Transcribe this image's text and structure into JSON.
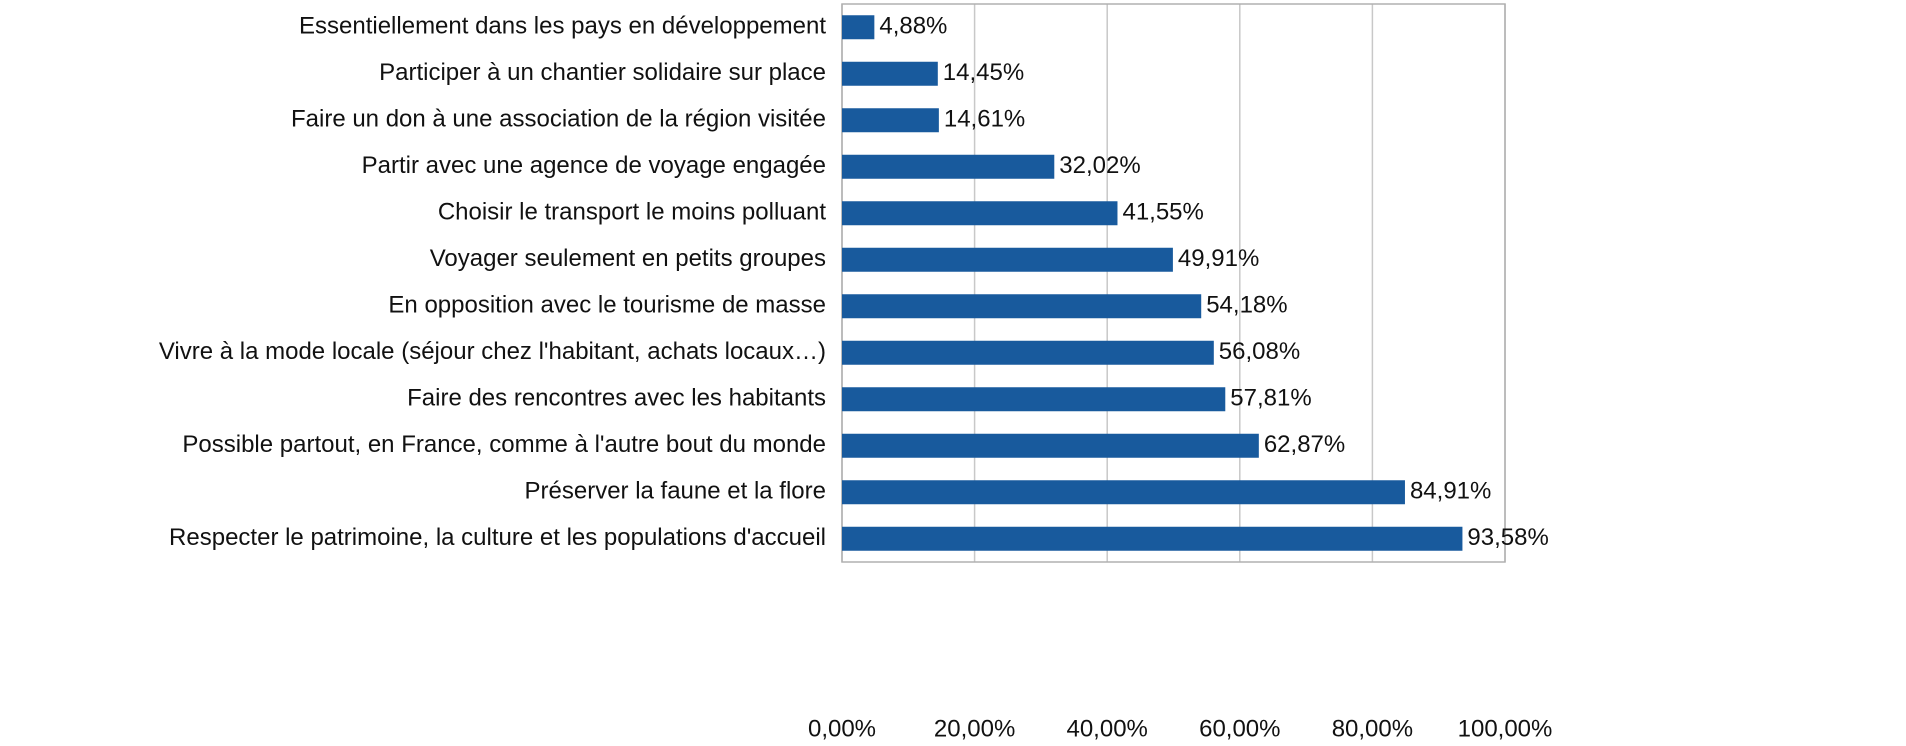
{
  "chart_data": {
    "type": "bar",
    "orientation": "horizontal",
    "categories": [
      "Essentiellement dans les pays en développement",
      "Participer à un chantier solidaire sur place",
      "Faire un don à une association de la région visitée",
      "Partir avec une agence de voyage engagée",
      "Choisir le transport le moins polluant",
      "Voyager seulement en petits groupes",
      "En opposition avec le tourisme de masse",
      "Vivre à la mode locale (séjour chez l'habitant, achats locaux…)",
      "Faire des rencontres avec les habitants",
      "Possible partout, en France, comme à l'autre bout du monde",
      "Préserver la faune et la flore",
      "Respecter le patrimoine, la culture et les populations d'accueil"
    ],
    "values": [
      4.88,
      14.45,
      14.61,
      32.02,
      41.55,
      49.91,
      54.18,
      56.08,
      57.81,
      62.87,
      84.91,
      93.58
    ],
    "value_labels": [
      "4,88%",
      "14,45%",
      "14,61%",
      "32,02%",
      "41,55%",
      "49,91%",
      "54,18%",
      "56,08%",
      "57,81%",
      "62,87%",
      "84,91%",
      "93,58%"
    ],
    "color": "#185a9d",
    "xlim": [
      0,
      100
    ],
    "xticks": [
      {
        "value": 0,
        "label": "0,00%"
      },
      {
        "value": 20,
        "label": "20,00%"
      },
      {
        "value": 40,
        "label": "40,00%"
      },
      {
        "value": 60,
        "label": "60,00%"
      },
      {
        "value": 80,
        "label": "80,00%"
      },
      {
        "value": 100,
        "label": "100,00%"
      }
    ],
    "grid": true
  }
}
